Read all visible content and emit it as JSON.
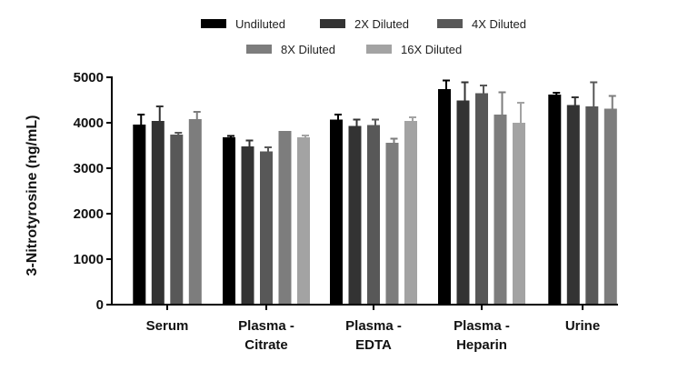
{
  "chart_data": {
    "type": "bar",
    "title": "",
    "xlabel": "",
    "ylabel": "3-Nitrotyrosine (ng/mL)",
    "ylim": [
      0,
      5000
    ],
    "yticks": [
      0,
      1000,
      2000,
      3000,
      4000,
      5000
    ],
    "grid": false,
    "legend_position": "top-center",
    "categories": [
      [
        "Serum"
      ],
      [
        "Plasma -",
        "Citrate"
      ],
      [
        "Plasma -",
        "EDTA"
      ],
      [
        "Plasma -",
        "Heparin"
      ],
      [
        "Urine"
      ]
    ],
    "series": [
      {
        "name": "Undiluted",
        "color": "#000000",
        "values": [
          3960,
          3680,
          4070,
          4740,
          4620
        ],
        "errors": [
          220,
          30,
          110,
          190,
          40
        ]
      },
      {
        "name": "2X Diluted",
        "color": "#333333",
        "values": [
          4040,
          3480,
          3930,
          4490,
          4390
        ],
        "errors": [
          320,
          130,
          140,
          400,
          170
        ]
      },
      {
        "name": "4X Diluted",
        "color": "#585858",
        "values": [
          3740,
          3370,
          3950,
          4650,
          4360
        ],
        "errors": [
          40,
          90,
          120,
          170,
          530
        ]
      },
      {
        "name": "8X Diluted",
        "color": "#7d7d7d",
        "values": [
          4080,
          3820,
          3560,
          4180,
          4310
        ],
        "errors": [
          160,
          0,
          90,
          490,
          280
        ]
      },
      {
        "name": "16X Diluted",
        "color": "#a3a3a3",
        "values": [
          null,
          3680,
          4040,
          4000,
          null
        ],
        "errors": [
          null,
          40,
          80,
          440,
          null
        ]
      }
    ]
  }
}
